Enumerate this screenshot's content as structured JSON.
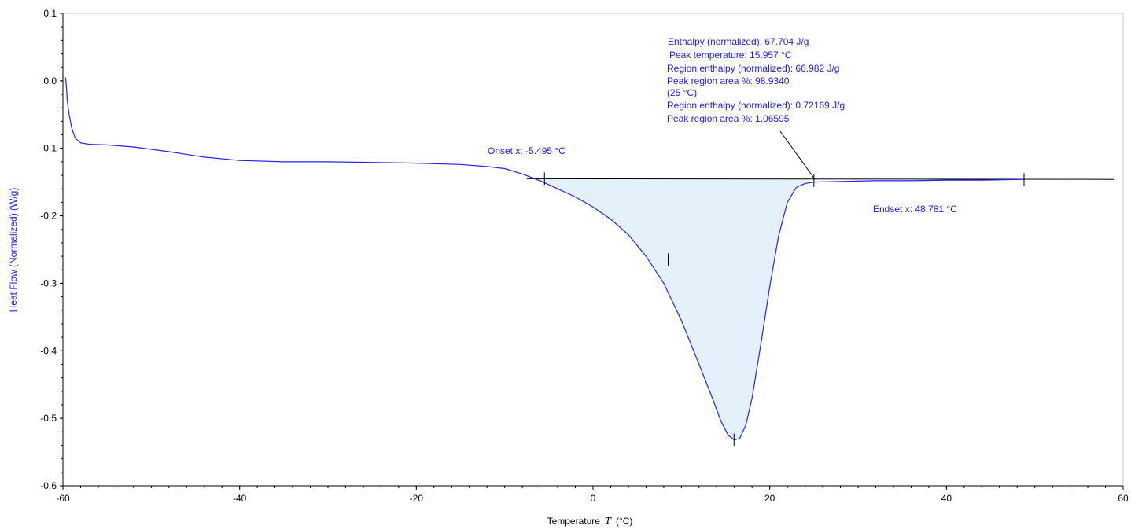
{
  "chart_data": {
    "type": "line",
    "xlabel": "Temperature",
    "xlabel_symbol": "T",
    "xlabel_unit": "(°C)",
    "ylabel": "Heat Flow (Normalized) (W/g)",
    "xlim": [
      -60,
      60
    ],
    "ylim": [
      -0.6,
      0.1
    ],
    "x_ticks": [
      -60,
      -40,
      -20,
      0,
      20,
      40,
      60
    ],
    "y_ticks": [
      0.1,
      0.0,
      -0.1,
      -0.2,
      -0.3,
      -0.4,
      -0.5,
      -0.6
    ],
    "x_tick_labels": [
      "-60",
      "-40",
      "-20",
      "0",
      "20",
      "40",
      "60"
    ],
    "y_tick_labels": [
      "0.1",
      "0.0",
      "-0.1",
      "-0.2",
      "-0.3",
      "-0.4",
      "-0.5",
      "-0.6"
    ],
    "grid": false,
    "series": [
      {
        "color": "#2222ee",
        "points": [
          [
            -59.7,
            0.005
          ],
          [
            -59.6,
            -0.01
          ],
          [
            -59.5,
            -0.03
          ],
          [
            -59.3,
            -0.05
          ],
          [
            -59.0,
            -0.07
          ],
          [
            -58.6,
            -0.085
          ],
          [
            -58.0,
            -0.092
          ],
          [
            -57.0,
            -0.094
          ],
          [
            -55,
            -0.095
          ],
          [
            -52,
            -0.098
          ],
          [
            -48,
            -0.105
          ],
          [
            -44,
            -0.113
          ],
          [
            -40,
            -0.118
          ],
          [
            -35,
            -0.12
          ],
          [
            -30,
            -0.12
          ],
          [
            -25,
            -0.121
          ],
          [
            -20,
            -0.122
          ],
          [
            -15,
            -0.124
          ],
          [
            -12,
            -0.127
          ],
          [
            -10,
            -0.13
          ],
          [
            -8,
            -0.138
          ],
          [
            -6,
            -0.148
          ],
          [
            -4,
            -0.16
          ],
          [
            -2,
            -0.172
          ],
          [
            0,
            -0.187
          ],
          [
            2,
            -0.205
          ],
          [
            4,
            -0.228
          ],
          [
            6,
            -0.26
          ],
          [
            8,
            -0.3
          ],
          [
            10,
            -0.355
          ],
          [
            12,
            -0.42
          ],
          [
            13.5,
            -0.47
          ],
          [
            14.5,
            -0.505
          ],
          [
            15.3,
            -0.525
          ],
          [
            15.957,
            -0.532
          ],
          [
            16.6,
            -0.53
          ],
          [
            17.3,
            -0.51
          ],
          [
            18,
            -0.47
          ],
          [
            19,
            -0.39
          ],
          [
            20,
            -0.305
          ],
          [
            21,
            -0.23
          ],
          [
            22,
            -0.18
          ],
          [
            23,
            -0.158
          ],
          [
            24,
            -0.152
          ],
          [
            25,
            -0.15
          ],
          [
            28,
            -0.149
          ],
          [
            32,
            -0.148
          ],
          [
            36,
            -0.148
          ],
          [
            40,
            -0.147
          ],
          [
            44,
            -0.147
          ],
          [
            48.781,
            -0.146
          ]
        ]
      }
    ],
    "baseline": {
      "color": "#000000",
      "points": [
        [
          -7.5,
          -0.145
        ],
        [
          59,
          -0.146
        ]
      ]
    },
    "shaded_region": {
      "color": "#e4f1fb",
      "x_range": [
        -7.5,
        24.3
      ]
    },
    "markers": [
      {
        "x": -5.495,
        "y": -0.145,
        "label": ""
      },
      {
        "x": 15.957,
        "y": -0.532,
        "label": ""
      },
      {
        "x": 25,
        "y": -0.148,
        "label": ""
      },
      {
        "x": 48.781,
        "y": -0.146,
        "label": ""
      },
      {
        "x": 8.5,
        "y": -0.265,
        "label": ""
      }
    ],
    "annotations": {
      "onset": "Onset x: -5.495 °C",
      "endset": "Endset x: 48.781 °C",
      "enthalpy_lines": [
        "Enthalpy (normalized): 67.704 J/g",
        "Peak temperature: 15.957 °C",
        "Region enthalpy (normalized): 66.982 J/g",
        "Peak region area %: 98.9340",
        "(25 °C)",
        "Region enthalpy (normalized): 0.72169 J/g",
        "Peak region area %: 1.06595"
      ]
    }
  }
}
